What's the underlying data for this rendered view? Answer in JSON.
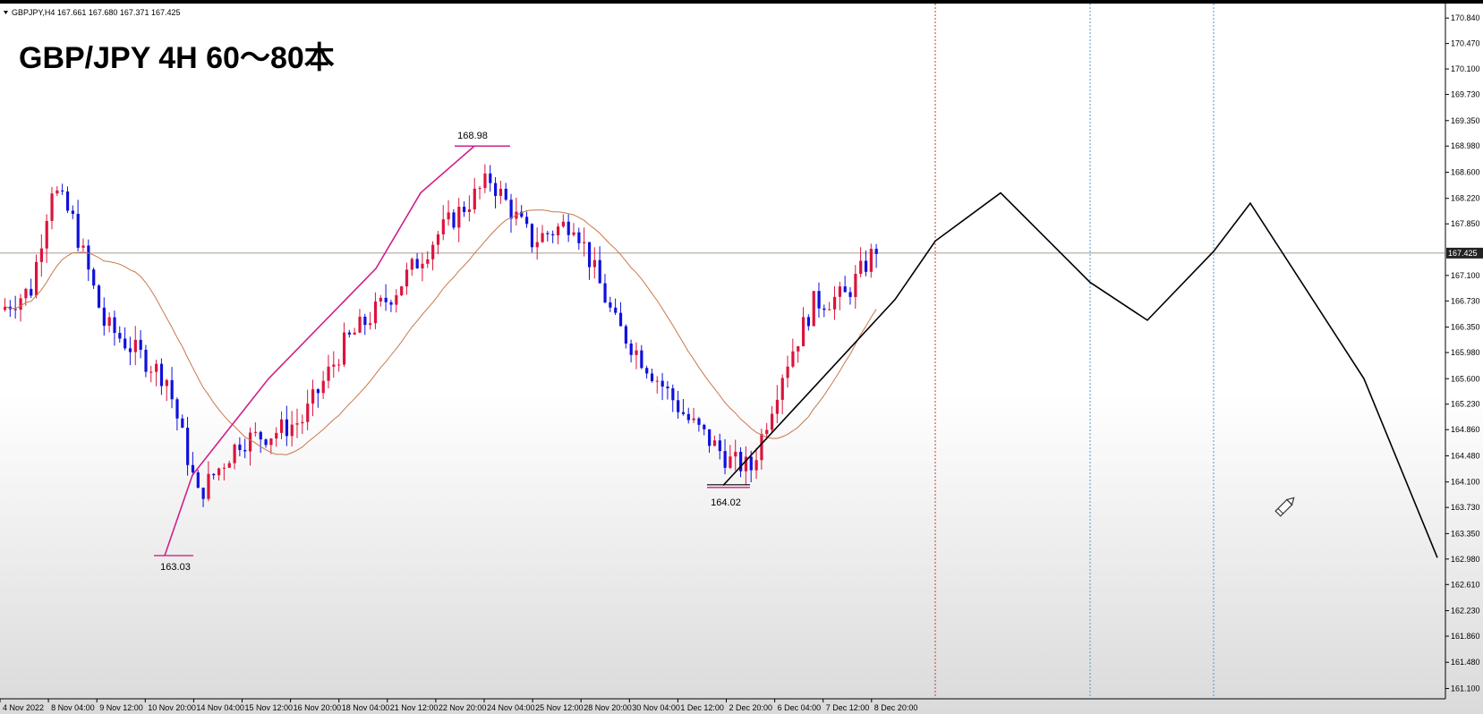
{
  "window": {
    "symbol_info": "GBPJPY,H4  167.661 167.680 167.371 167.425"
  },
  "chart_title": "GBP/JPY 4H 60～80本",
  "chart_data": {
    "type": "candlestick",
    "symbol": "GBPJPY",
    "timeframe": "H4",
    "ohlc_header": {
      "open": 167.661,
      "high": 167.68,
      "low": 167.371,
      "close": 167.425
    },
    "current_price": "167.425",
    "ylim": [
      160.95,
      171.05
    ],
    "y_ticks": [
      "170.840",
      "170.470",
      "170.100",
      "169.730",
      "169.350",
      "168.980",
      "168.600",
      "168.220",
      "167.850",
      "167.100",
      "166.730",
      "166.350",
      "165.980",
      "165.600",
      "165.230",
      "164.860",
      "164.480",
      "164.100",
      "163.730",
      "163.350",
      "162.980",
      "162.610",
      "162.230",
      "161.860",
      "161.480",
      "161.100"
    ],
    "x_ticks": [
      "4 Nov 2022",
      "8 Nov 04:00",
      "9 Nov 12:00",
      "10 Nov 20:00",
      "14 Nov 04:00",
      "15 Nov 12:00",
      "16 Nov 20:00",
      "18 Nov 04:00",
      "21 Nov 12:00",
      "22 Nov 20:00",
      "24 Nov 04:00",
      "25 Nov 12:00",
      "28 Nov 20:00",
      "30 Nov 04:00",
      "1 Dec 12:00",
      "2 Dec 20:00",
      "6 Dec 04:00",
      "7 Dec 12:00",
      "8 Dec 20:00"
    ],
    "annotations": [
      {
        "label": "168.98",
        "price": 168.98,
        "note": "high"
      },
      {
        "label": "163.03",
        "price": 163.03,
        "note": "low"
      },
      {
        "label": "164.02",
        "price": 164.02,
        "note": "low"
      }
    ],
    "candle_count": 168,
    "colors": {
      "bull": "#dc143c",
      "bear": "#1010dd",
      "ma": "#c8784a",
      "trend_up": "#d0208a",
      "projection": "#000000",
      "vline_red": "#cc3333",
      "vline_blue": "#4a9ad6",
      "price_tag_bg": "#222222"
    }
  }
}
